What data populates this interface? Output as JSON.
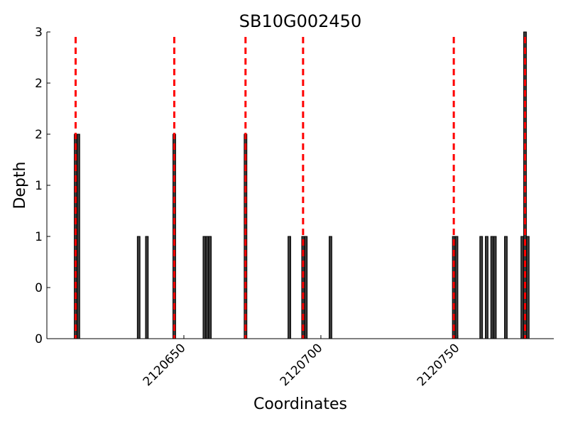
{
  "chart_data": {
    "type": "bar",
    "title": "SB10G002450",
    "xlabel": "Coordinates",
    "ylabel": "Depth",
    "xlim": [
      2120600,
      2120785
    ],
    "ylim": [
      0,
      3
    ],
    "x_ticks": [
      2120650,
      2120700,
      2120750
    ],
    "x_tick_labels": [
      "2120650",
      "2120700",
      "2120750"
    ],
    "y_ticks": [
      0,
      0.5,
      1,
      1.5,
      2,
      2.5,
      3
    ],
    "y_tick_labels": [
      "0",
      "0",
      "1",
      "1",
      "2",
      "2",
      "3"
    ],
    "bar_width": 1,
    "bars": [
      {
        "x": 2120610,
        "y": 2
      },
      {
        "x": 2120611,
        "y": 2
      },
      {
        "x": 2120633,
        "y": 1
      },
      {
        "x": 2120636,
        "y": 1
      },
      {
        "x": 2120646,
        "y": 2
      },
      {
        "x": 2120657,
        "y": 1
      },
      {
        "x": 2120658,
        "y": 1
      },
      {
        "x": 2120659,
        "y": 1
      },
      {
        "x": 2120672,
        "y": 2
      },
      {
        "x": 2120688,
        "y": 1
      },
      {
        "x": 2120693,
        "y": 1
      },
      {
        "x": 2120694,
        "y": 1
      },
      {
        "x": 2120703,
        "y": 1
      },
      {
        "x": 2120748,
        "y": 1
      },
      {
        "x": 2120749,
        "y": 1
      },
      {
        "x": 2120758,
        "y": 1
      },
      {
        "x": 2120760,
        "y": 1
      },
      {
        "x": 2120762,
        "y": 1
      },
      {
        "x": 2120763,
        "y": 1
      },
      {
        "x": 2120767,
        "y": 1
      },
      {
        "x": 2120773,
        "y": 1
      },
      {
        "x": 2120774,
        "y": 3
      },
      {
        "x": 2120775,
        "y": 1
      }
    ],
    "markers": [
      2120610.5,
      2120646.5,
      2120672.5,
      2120693.5,
      2120748.5,
      2120774.5
    ],
    "bar_color": "#3a3a3a",
    "bar_edge_color": "#000000",
    "marker_color": "#ff0000",
    "grid": false
  }
}
